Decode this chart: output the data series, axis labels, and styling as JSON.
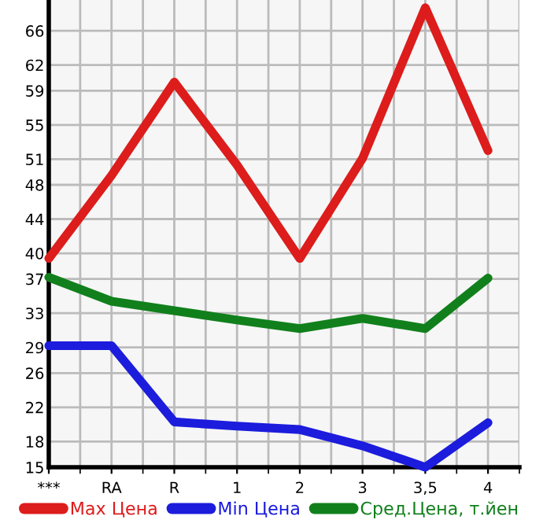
{
  "chart_data": {
    "type": "line",
    "categories": [
      "***",
      "RA",
      "R",
      "1",
      "2",
      "3",
      "3,5",
      "4"
    ],
    "series": [
      {
        "name": "Max Цена",
        "color": "#dd1c1c",
        "values": [
          39.4,
          49.1,
          60.0,
          50.3,
          39.4,
          51.1,
          68.7,
          52.0
        ]
      },
      {
        "name": "Min Цена",
        "color": "#1c1cdd",
        "values": [
          29.2,
          29.2,
          20.3,
          19.8,
          19.4,
          17.5,
          15.0,
          20.2
        ]
      },
      {
        "name": "Сред.Цена, т.йен",
        "color": "#11801c",
        "values": [
          37.2,
          34.4,
          33.3,
          32.2,
          31.2,
          32.4,
          31.2,
          37.1
        ]
      }
    ],
    "ylim": [
      15,
      69.6
    ],
    "yticks": [
      15,
      18,
      22,
      26,
      29,
      33,
      37,
      40,
      44,
      48,
      51,
      55,
      59,
      62,
      66
    ],
    "grid": true,
    "legend": "bottom",
    "marker": "none",
    "line_style": "solid"
  }
}
